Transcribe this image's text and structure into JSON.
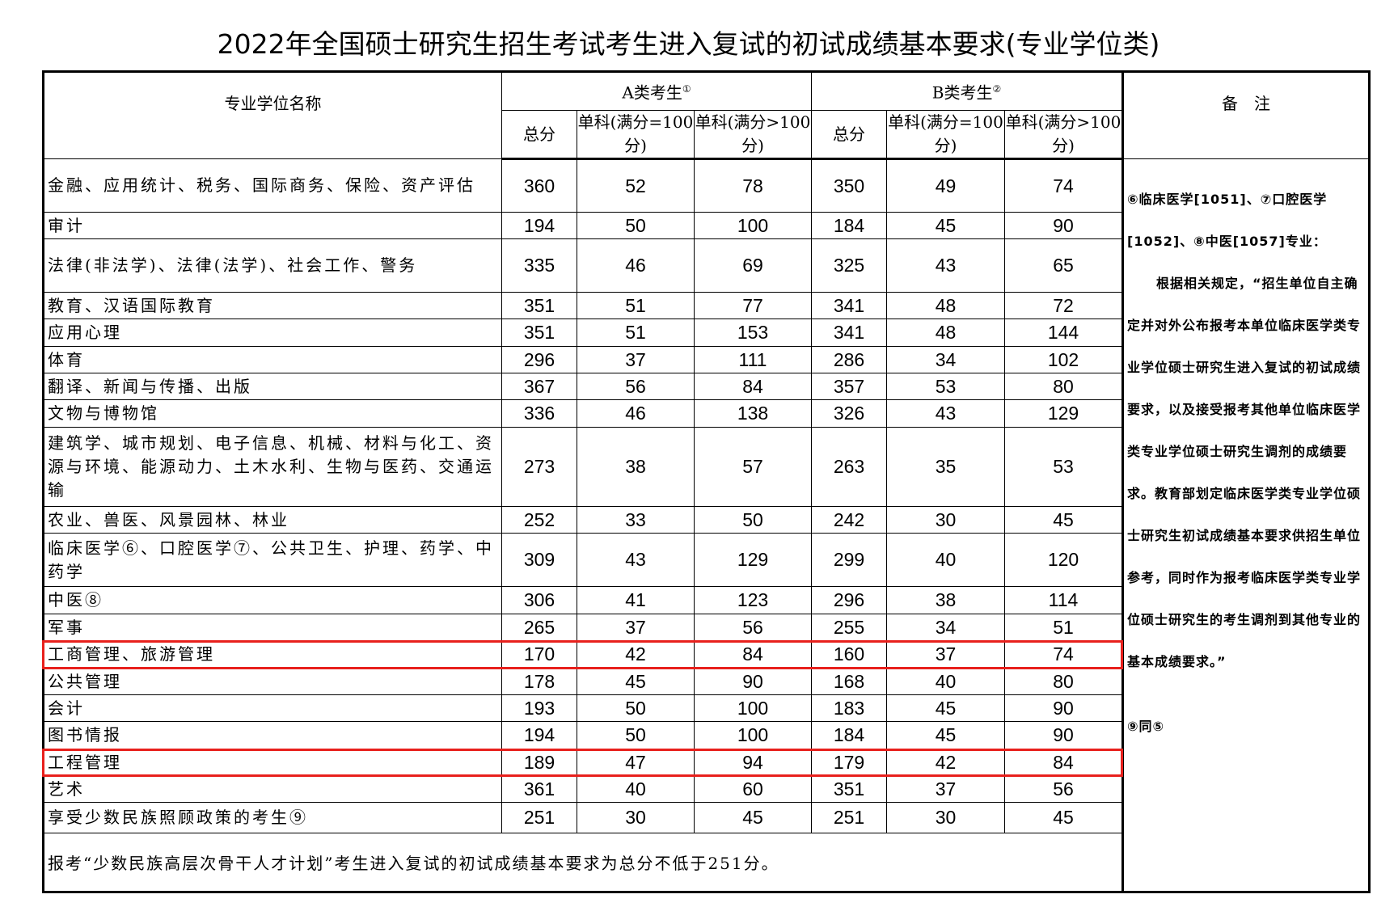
{
  "title": "2022年全国硕士研究生招生考试考生进入复试的初试成绩基本要求(专业学位类)",
  "header": {
    "name_col": "专业学位名称",
    "group_a": "A类考生",
    "group_a_mark": "①",
    "group_b": "B类考生",
    "group_b_mark": "②",
    "remark_col": "备　注",
    "total": "总分",
    "single_100": "单科(满分=100分)",
    "single_over_100": "单科(满分>100分)"
  },
  "rows": [
    {
      "name": "金融、应用统计、税务、国际商务、保险、资产评估",
      "a": [
        "360",
        "52",
        "78"
      ],
      "b": [
        "350",
        "49",
        "74"
      ]
    },
    {
      "name": "审计",
      "a": [
        "194",
        "50",
        "100"
      ],
      "b": [
        "184",
        "45",
        "90"
      ]
    },
    {
      "name": "法律(非法学)、法律(法学)、社会工作、警务",
      "a": [
        "335",
        "46",
        "69"
      ],
      "b": [
        "325",
        "43",
        "65"
      ]
    },
    {
      "name": "教育、汉语国际教育",
      "a": [
        "351",
        "51",
        "77"
      ],
      "b": [
        "341",
        "48",
        "72"
      ]
    },
    {
      "name": "应用心理",
      "a": [
        "351",
        "51",
        "153"
      ],
      "b": [
        "341",
        "48",
        "144"
      ]
    },
    {
      "name": "体育",
      "a": [
        "296",
        "37",
        "111"
      ],
      "b": [
        "286",
        "34",
        "102"
      ]
    },
    {
      "name": "翻译、新闻与传播、出版",
      "a": [
        "367",
        "56",
        "84"
      ],
      "b": [
        "357",
        "53",
        "80"
      ]
    },
    {
      "name": "文物与博物馆",
      "a": [
        "336",
        "46",
        "138"
      ],
      "b": [
        "326",
        "43",
        "129"
      ]
    },
    {
      "name": "建筑学、城市规划、电子信息、机械、材料与化工、资源与环境、能源动力、土木水利、生物与医药、交通运输",
      "a": [
        "273",
        "38",
        "57"
      ],
      "b": [
        "263",
        "35",
        "53"
      ]
    },
    {
      "name": "农业、兽医、风景园林、林业",
      "a": [
        "252",
        "33",
        "50"
      ],
      "b": [
        "242",
        "30",
        "45"
      ]
    },
    {
      "name": "临床医学⑥、口腔医学⑦、公共卫生、护理、药学、中药学",
      "a": [
        "309",
        "43",
        "129"
      ],
      "b": [
        "299",
        "40",
        "120"
      ]
    },
    {
      "name": "中医⑧",
      "a": [
        "306",
        "41",
        "123"
      ],
      "b": [
        "296",
        "38",
        "114"
      ]
    },
    {
      "name": "军事",
      "a": [
        "265",
        "37",
        "56"
      ],
      "b": [
        "255",
        "34",
        "51"
      ]
    },
    {
      "name": "工商管理、旅游管理",
      "a": [
        "170",
        "42",
        "84"
      ],
      "b": [
        "160",
        "37",
        "74"
      ],
      "highlighted": true
    },
    {
      "name": "公共管理",
      "a": [
        "178",
        "45",
        "90"
      ],
      "b": [
        "168",
        "40",
        "80"
      ]
    },
    {
      "name": "会计",
      "a": [
        "193",
        "50",
        "100"
      ],
      "b": [
        "183",
        "45",
        "90"
      ]
    },
    {
      "name": "图书情报",
      "a": [
        "194",
        "50",
        "100"
      ],
      "b": [
        "184",
        "45",
        "90"
      ]
    },
    {
      "name": "工程管理",
      "a": [
        "189",
        "47",
        "94"
      ],
      "b": [
        "179",
        "42",
        "84"
      ],
      "highlighted": true
    },
    {
      "name": "艺术",
      "a": [
        "361",
        "40",
        "60"
      ],
      "b": [
        "351",
        "37",
        "56"
      ]
    },
    {
      "name": "享受少数民族照顾政策的考生⑨",
      "a": [
        "251",
        "30",
        "45"
      ],
      "b": [
        "251",
        "30",
        "45"
      ]
    }
  ],
  "remarks": {
    "note_head": "⑥临床医学[1051]、⑦口腔医学[1052]、⑧中医[1057]专业：",
    "note_body": "根据相关规定，“招生单位自主确定并对外公布报考本单位临床医学类专业学位硕士研究生进入复试的初试成绩要求，以及接受报考其他单位临床医学类专业学位硕士研究生调剂的成绩要求。教育部划定临床医学类专业学位硕士研究生初试成绩基本要求供招生单位参考，同时作为报考临床医学类专业学位硕士研究生的考生调剂到其他专业的基本成绩要求。”",
    "note_9": "⑨同⑤"
  },
  "footer": "报考“少数民族高层次骨干人才计划”考生进入复试的初试成绩基本要求为总分不低于251分。",
  "colors": {
    "highlight_box": "#e8201c"
  }
}
